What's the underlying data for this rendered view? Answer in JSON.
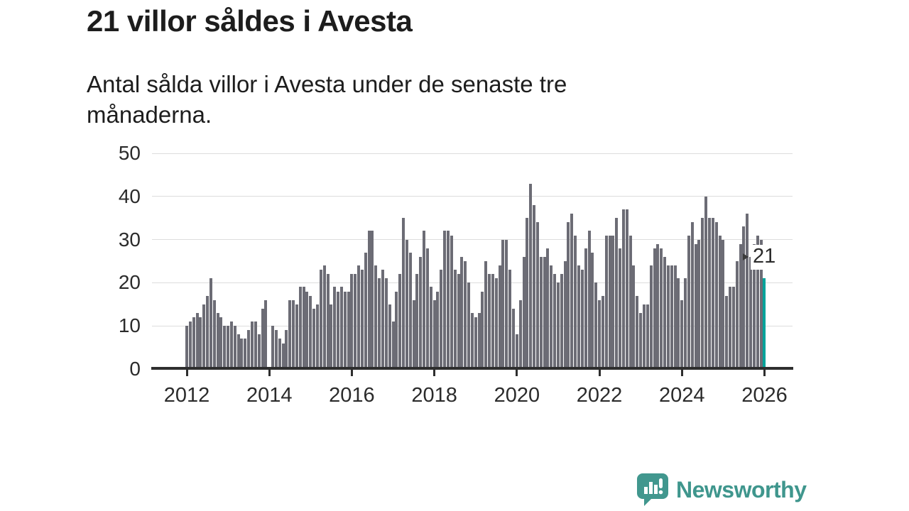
{
  "header": {
    "title": "21 villor såldes i Avesta",
    "subtitle": "Antal sålda villor i Avesta under de senaste tre månaderna."
  },
  "annotation": {
    "label": "21"
  },
  "footer": {
    "brand": "Newsworthy"
  },
  "colors": {
    "bar": "#6c6c75",
    "highlight": "#00a39a",
    "grid": "#dddddd",
    "axis": "#2e2e2e",
    "text": "#1d1d1d",
    "logo": "#3f968d"
  },
  "chart_data": {
    "type": "bar",
    "title": "21 villor såldes i Avesta",
    "subtitle": "Antal sålda villor i Avesta under de senaste tre månaderna.",
    "x_start": "2012-01",
    "x_end": "2026-01",
    "frequency": "monthly-rolling-3-months",
    "ylabel": "",
    "xlabel": "",
    "ylim": [
      0,
      50
    ],
    "yticks": [
      0,
      10,
      20,
      30,
      40,
      50
    ],
    "xticks": [
      2012,
      2014,
      2016,
      2018,
      2020,
      2022,
      2024,
      2026
    ],
    "grid": true,
    "legend": "none",
    "series": [
      {
        "name": "Antal sålda villor",
        "values": [
          10,
          11,
          12,
          13,
          12,
          15,
          17,
          21,
          16,
          13,
          12,
          10,
          10,
          11,
          10,
          8,
          7,
          7,
          9,
          11,
          11,
          8,
          14,
          16,
          null,
          10,
          9,
          7,
          6,
          9,
          16,
          16,
          15,
          19,
          19,
          18,
          17,
          14,
          15,
          23,
          24,
          22,
          15,
          19,
          18,
          19,
          18,
          18,
          22,
          22,
          24,
          23,
          27,
          32,
          32,
          24,
          21,
          23,
          21,
          15,
          11,
          18,
          22,
          35,
          30,
          27,
          16,
          22,
          26,
          32,
          28,
          19,
          16,
          18,
          23,
          32,
          32,
          31,
          23,
          22,
          26,
          25,
          20,
          13,
          12,
          13,
          18,
          25,
          22,
          22,
          21,
          24,
          30,
          30,
          23,
          14,
          8,
          16,
          26,
          35,
          43,
          38,
          34,
          26,
          26,
          28,
          24,
          22,
          20,
          22,
          25,
          34,
          36,
          31,
          24,
          23,
          28,
          32,
          27,
          20,
          16,
          17,
          31,
          31,
          31,
          35,
          28,
          37,
          37,
          31,
          24,
          17,
          13,
          15,
          15,
          24,
          28,
          29,
          28,
          26,
          24,
          24,
          24,
          21,
          16,
          21,
          31,
          34,
          29,
          30,
          35,
          40,
          35,
          35,
          34,
          31,
          30,
          17,
          19,
          19,
          25,
          29,
          33,
          36,
          26,
          29,
          31,
          30,
          21
        ]
      }
    ],
    "highlight": {
      "index": 168,
      "value": 21,
      "label": "21"
    }
  }
}
